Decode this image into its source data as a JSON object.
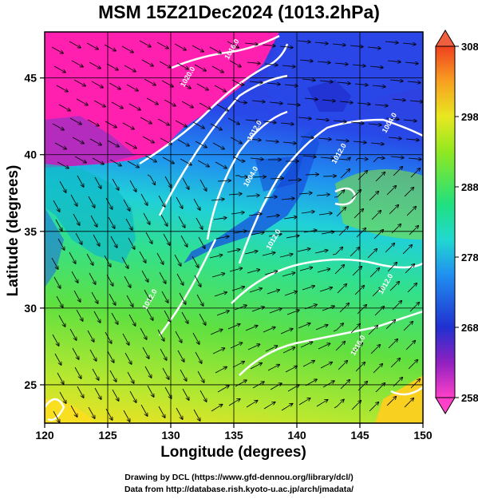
{
  "title": "MSM 15Z21Dec2024 (1013.2hPa)",
  "x_axis": {
    "label": "Longitude (degrees)",
    "ticks": [
      "120",
      "125",
      "130",
      "135",
      "140",
      "145",
      "150"
    ]
  },
  "y_axis": {
    "label": "Latitude  (degrees)",
    "ticks": [
      "25",
      "30",
      "35",
      "40",
      "45"
    ]
  },
  "colorbar": {
    "ticks": [
      "258",
      "268",
      "278",
      "288",
      "298",
      "308"
    ]
  },
  "contour_labels": [
    {
      "text": "1020.0",
      "lon": 131.5,
      "lat": 45.0
    },
    {
      "text": "1016.0",
      "lon": 135.0,
      "lat": 46.8
    },
    {
      "text": "1012.0",
      "lon": 136.8,
      "lat": 41.5
    },
    {
      "text": "1004.0",
      "lon": 136.5,
      "lat": 38.5
    },
    {
      "text": "1004.0",
      "lon": 147.5,
      "lat": 42.0
    },
    {
      "text": "1012.0",
      "lon": 143.5,
      "lat": 40.0
    },
    {
      "text": "1012.0",
      "lon": 128.5,
      "lat": 30.5
    },
    {
      "text": "1012.0",
      "lon": 147.2,
      "lat": 31.5
    },
    {
      "text": "1016.0",
      "lon": 145.0,
      "lat": 27.5
    },
    {
      "text": "1012.0",
      "lon": 138.3,
      "lat": 34.4
    }
  ],
  "credits": {
    "line1": "Drawing by DCL (https://www.gfd-dennou.org/library/dcl/)",
    "line2": "Data from http://database.rish.kyoto-u.ac.jp/arch/jmadata/"
  },
  "colors": {
    "cold": "#ff20b0",
    "cool": "#2040e0",
    "mid": "#20d8c0",
    "warm": "#70e030",
    "hot": "#f0d010"
  }
}
